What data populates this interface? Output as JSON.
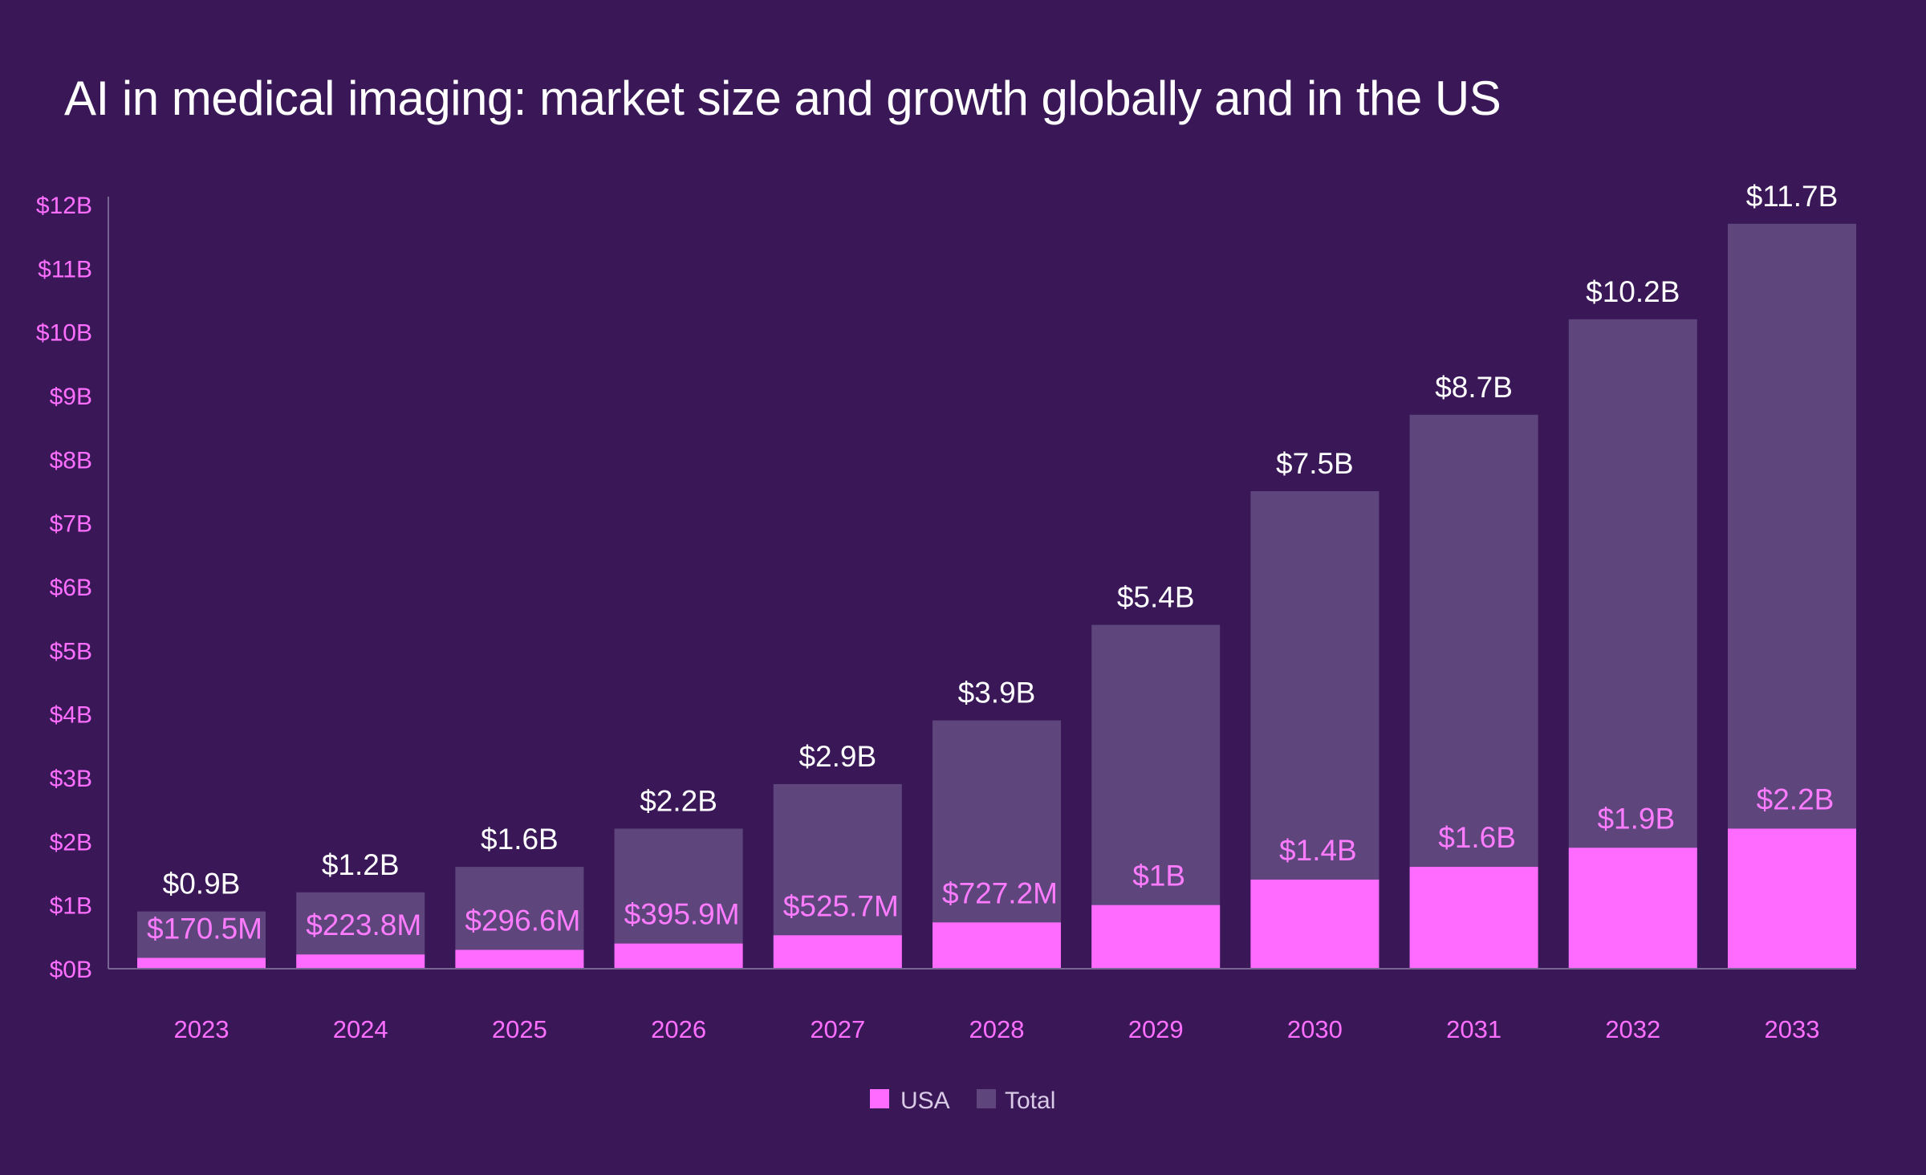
{
  "title": "AI in medical imaging: market size and growth globally and in the US",
  "chart_data": {
    "type": "bar",
    "stacking": "overlay",
    "title": "AI in medical imaging: market size and growth globally and in the US",
    "xlabel": "",
    "ylabel": "",
    "ylim": [
      0,
      12
    ],
    "y_unit": "billions USD",
    "y_ticks": [
      0,
      1,
      2,
      3,
      4,
      5,
      6,
      7,
      8,
      9,
      10,
      11,
      12
    ],
    "y_tick_labels": [
      "$0B",
      "$1B",
      "$2B",
      "$3B",
      "$4B",
      "$5B",
      "$6B",
      "$7B",
      "$8B",
      "$9B",
      "$10B",
      "$11B",
      "$12B"
    ],
    "categories": [
      "2023",
      "2024",
      "2025",
      "2026",
      "2027",
      "2028",
      "2029",
      "2030",
      "2031",
      "2032",
      "2033"
    ],
    "series": [
      {
        "name": "Total",
        "color": "#5e467d",
        "values": [
          0.9,
          1.2,
          1.6,
          2.2,
          2.9,
          3.9,
          5.4,
          7.5,
          8.7,
          10.2,
          11.7
        ],
        "labels": [
          "$0.9B",
          "$1.2B",
          "$1.6B",
          "$2.2B",
          "$2.9B",
          "$3.9B",
          "$5.4B",
          "$7.5B",
          "$8.7B",
          "$10.2B",
          "$11.7B"
        ]
      },
      {
        "name": "USA",
        "color": "#ff6bff",
        "values": [
          0.1705,
          0.2238,
          0.2966,
          0.3959,
          0.5257,
          0.7272,
          1.0,
          1.4,
          1.6,
          1.9,
          2.2
        ],
        "labels": [
          "$170.5M",
          "$223.8M",
          "$296.6M",
          "$395.9M",
          "$525.7M",
          "$727.2M",
          "$1B",
          "$1.4B",
          "$1.6B",
          "$1.9B",
          "$2.2B"
        ]
      }
    ],
    "legend": {
      "position": "bottom-center",
      "entries": [
        {
          "name": "USA",
          "color": "#ff6bff"
        },
        {
          "name": "Total",
          "color": "#5e467d"
        }
      ]
    },
    "grid": false,
    "colors": {
      "background": "#3a1858",
      "axis": "#7a6494",
      "tick_text": "#ff6fff",
      "total_label": "#ffffff",
      "usa_label": "#ff7bff"
    }
  }
}
